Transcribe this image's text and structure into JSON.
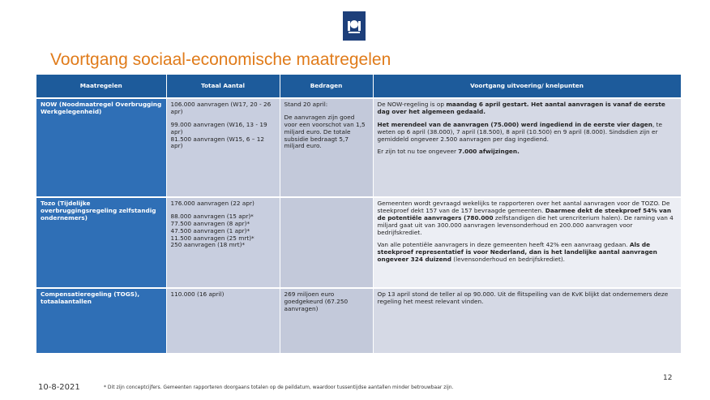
{
  "header": {
    "title": "Voortgang sociaal-economische maatregelen"
  },
  "table": {
    "columns": [
      "Maatregelen",
      "Totaal Aantal",
      "Bedragen",
      "Voortgang uitvoering/ knelpunten"
    ],
    "rows": [
      [
        [
          "NOW (Noodmaatregel Overbrugging Werkgelegenheid)"
        ],
        [
          [
            "106.000 aanvragen (W17, 20 - 26 apr)"
          ],
          [
            "99.000 aanvragen (W16, 13 - 19 apr)",
            "81.500 aanvragen (W15, 6 – 12 apr)"
          ]
        ],
        [
          [
            "Stand 20 april:"
          ],
          [
            "De aanvragen zijn goed voor een voorschot van 1,5 miljard euro. De totale subsidie bedraagt 5,7 miljard euro."
          ]
        ],
        [
          [
            [
              "De NOW-regeling is op ",
              {
                "bold": "maandag 6 april gestart. Het aantal aanvragen is vanaf de eerste dag over het algemeen gedaald."
              }
            ]
          ],
          [
            [
              {
                "bold": "Het merendeel van de aanvragen (75.000) werd ingediend in de eerste vier dagen"
              },
              ", te weten op 6 april (38.000), 7 april (18.500), 8 april (10.500) en 9 april (8.000). Sindsdien zijn er gemiddeld ongeveer 2.500 aanvragen per dag ingediend."
            ]
          ],
          [
            [
              "Er zijn tot nu toe ongeveer ",
              {
                "bold": "7.000 afwijzingen."
              }
            ]
          ]
        ]
      ],
      [
        [
          "Tozo (Tijdelijke overbruggingsregeling zelfstandig ondernemers)"
        ],
        [
          [
            "176.000 aanvragen (22 apr)"
          ],
          [
            "88.000 aanvragen (15 apr)*",
            "77.500 aanvragen (8 apr)*",
            "47.500 aanvragen (1 apr)*",
            "11.500 aanvragen (25 mrt)*",
            "250 aanvragen (18 mrt)*"
          ]
        ],
        [],
        [
          [
            [
              "Gemeenten wordt gevraagd wekelijks te rapporteren over het aantal aanvragen voor de TOZO. De steekproef dekt 157 van de 157 bevraagde gemeenten. ",
              {
                "bold": "Daarmee dekt de steekproef 54% van de potentiële aanvragers (780.000"
              },
              " zelfstandigen die het urencriterium halen). De raming van 4 miljard gaat uit van 300.000 aanvragen levensonderhoud en 200.000 aanvragen voor bedrijfskrediet."
            ]
          ],
          [
            [
              "Van alle potentiële aanvragers in deze gemeenten heeft 42% een aanvraag gedaan. ",
              {
                "bold": "Als de steekproef representatief is voor Nederland, dan is het landelijke aantal aanvragen ongeveer 324 duizend"
              },
              " (levensonderhoud en bedrijfskrediet)."
            ]
          ]
        ]
      ],
      [
        [
          "Compensatieregeling (TOGS), totaalaantallen"
        ],
        [
          [
            "110.000 (16 april)"
          ]
        ],
        [
          [
            "269 miljoen euro goedgekeurd (67.250 aanvragen)"
          ]
        ],
        [
          [
            "Op 13 april stond de teller al op 90.000. Uit de flitspeiling van de KvK blijkt dat ondernemers deze regeling het meest relevant vinden."
          ]
        ]
      ]
    ]
  },
  "footer": {
    "date": "10-8-2021",
    "note": "* Dit zijn conceptcijfers. Gemeenten rapporteren doorgaans totalen op de peildatum, waardoor tussentijdse aantallen minder betrouwbaar zijn.",
    "page": "12"
  }
}
